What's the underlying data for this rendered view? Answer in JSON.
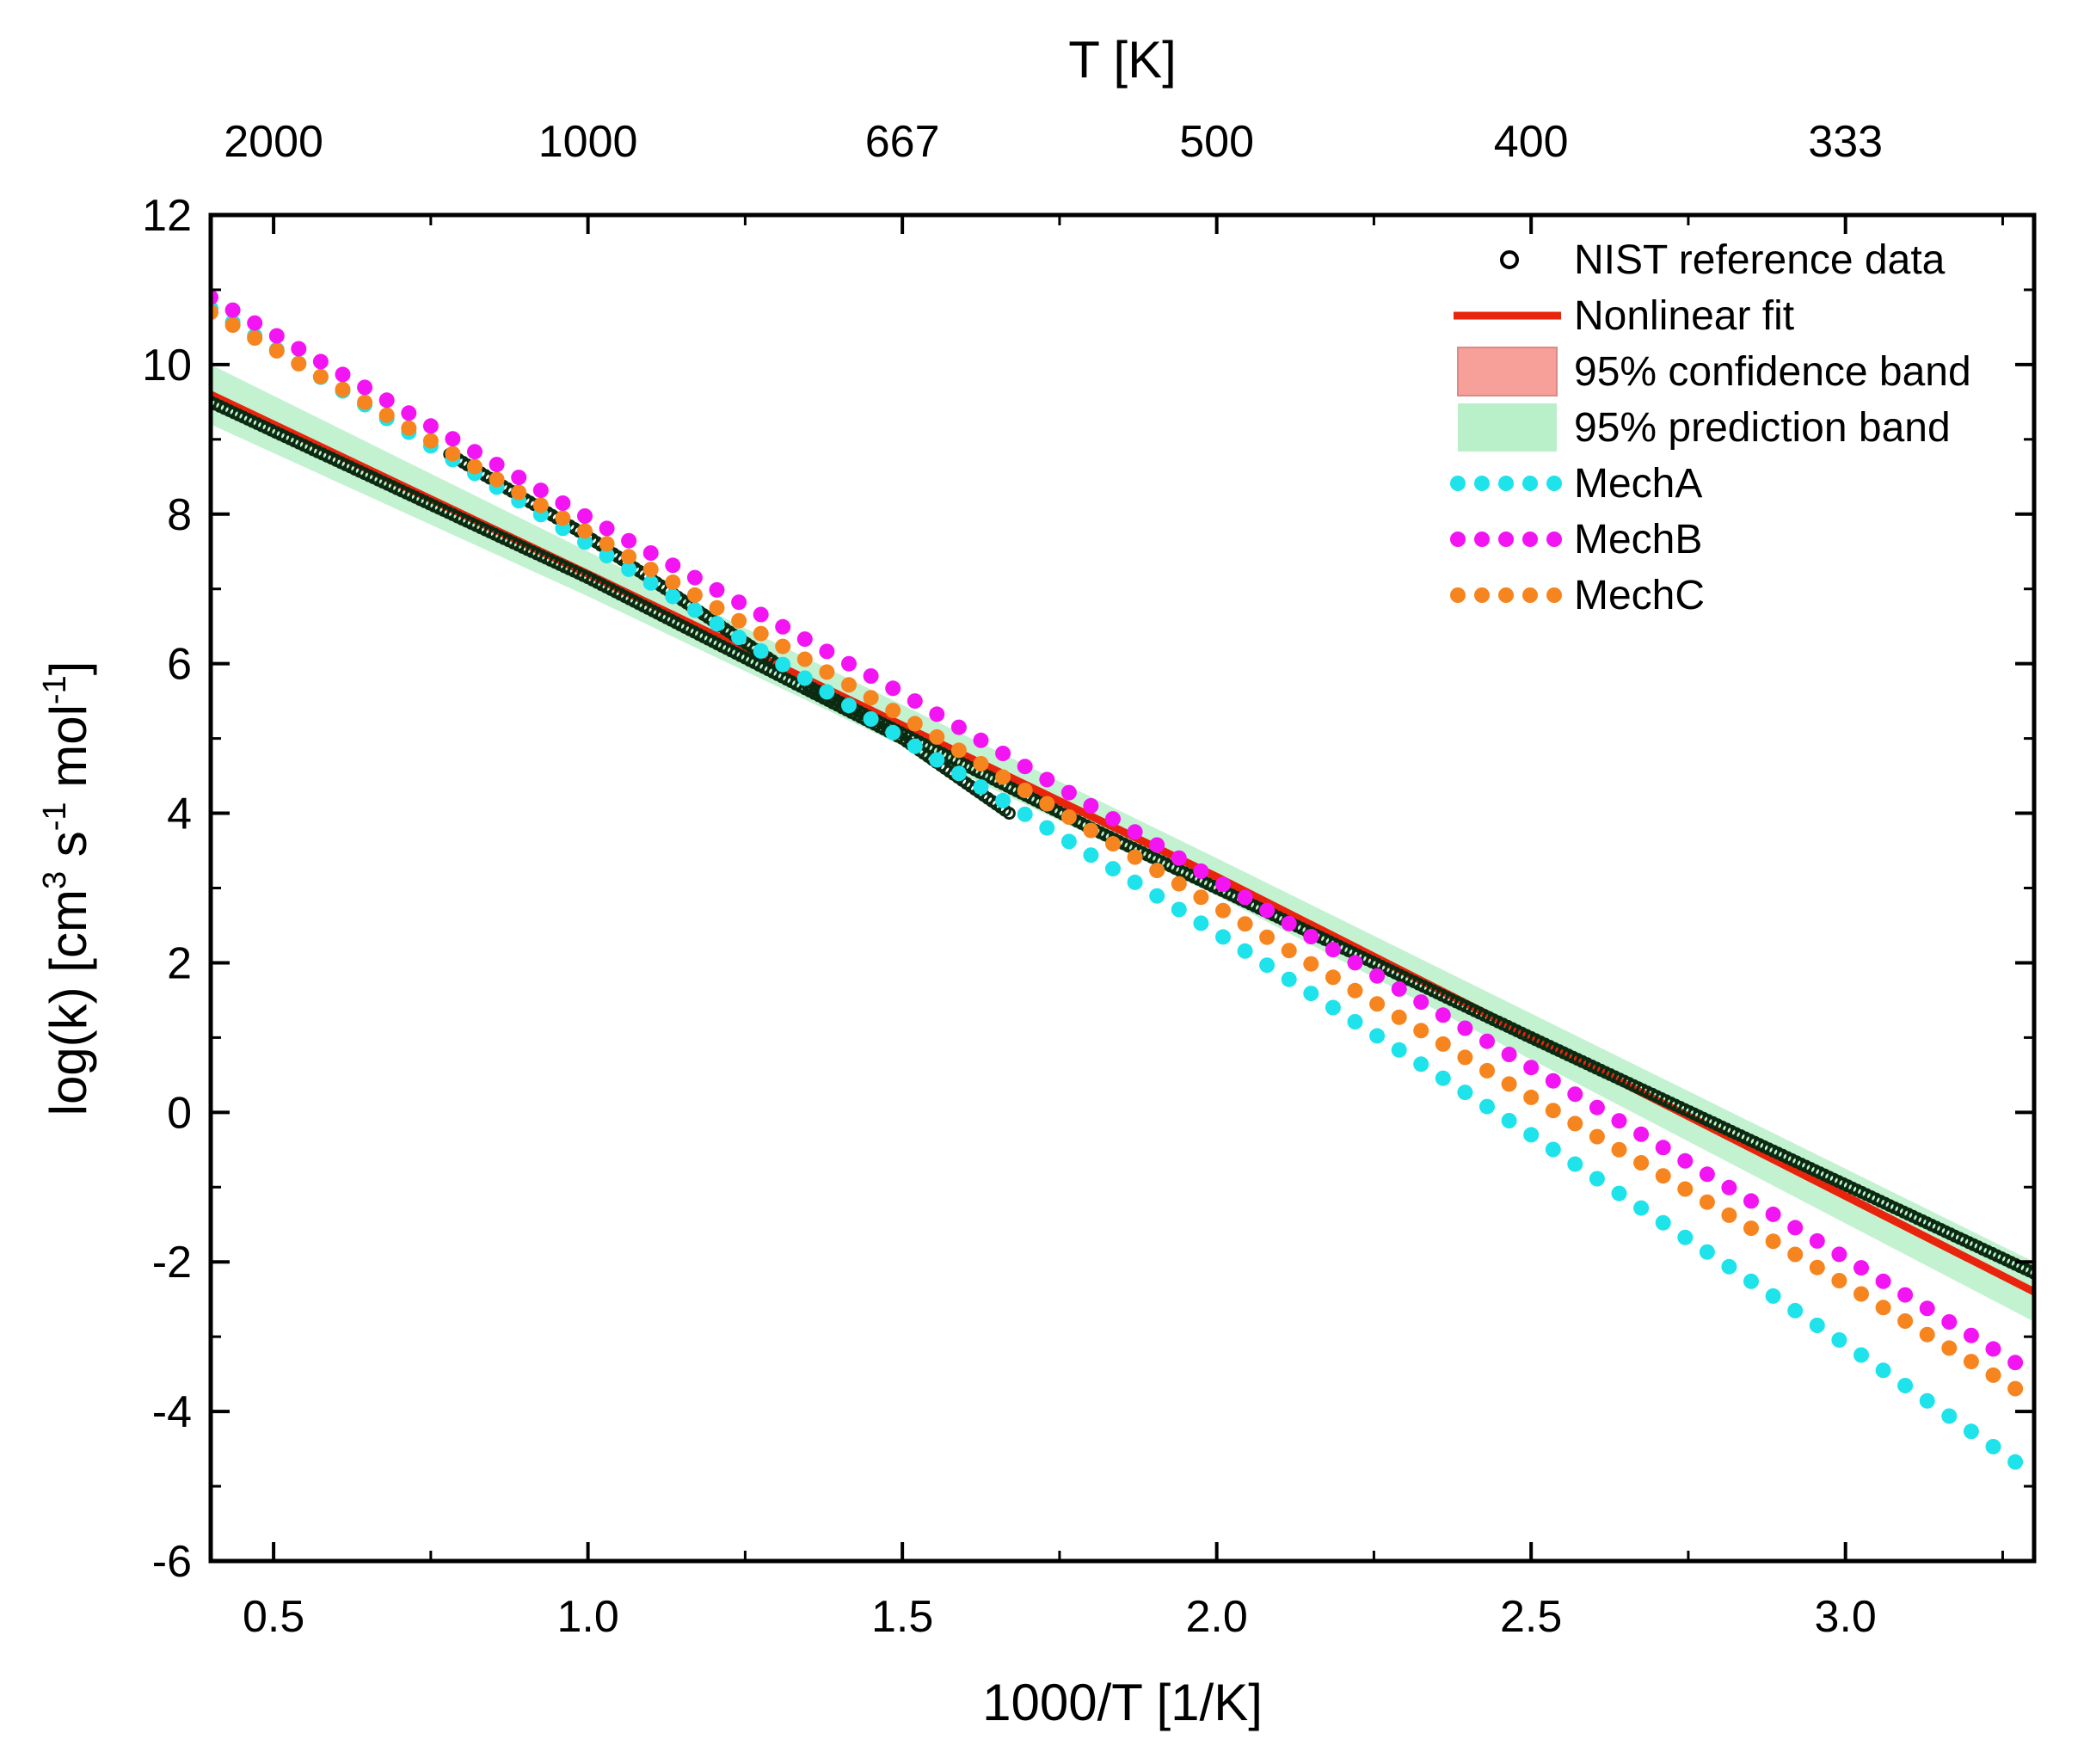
{
  "chart_data": {
    "type": "scatter",
    "title": "",
    "xlabel": "1000/T [1/K]",
    "top_xlabel": "T [K]",
    "ylabel": "log(k) [cm³ s⁻¹ mol⁻¹]",
    "ylabel_parts": {
      "pre": "log(k) [cm",
      "sup1": "3",
      "mid1": " s",
      "sup2": "-1",
      "mid2": " mol",
      "sup3": "-1",
      "post": "]"
    },
    "xlim": [
      0.4,
      3.3
    ],
    "ylim": [
      -6,
      12
    ],
    "x_ticks": [
      {
        "value": 0.5,
        "label": "0.5"
      },
      {
        "value": 1.0,
        "label": "1.0"
      },
      {
        "value": 1.5,
        "label": "1.5"
      },
      {
        "value": 2.0,
        "label": "2.0"
      },
      {
        "value": 2.5,
        "label": "2.5"
      },
      {
        "value": 3.0,
        "label": "3.0"
      }
    ],
    "top_ticks": [
      {
        "value": 0.5,
        "label": "2000"
      },
      {
        "value": 1.0,
        "label": "1000"
      },
      {
        "value": 1.5,
        "label": "667"
      },
      {
        "value": 2.0,
        "label": "500"
      },
      {
        "value": 2.5,
        "label": "400"
      },
      {
        "value": 3.0,
        "label": "333"
      }
    ],
    "y_ticks": [
      {
        "value": 12,
        "label": "12"
      },
      {
        "value": 10,
        "label": "10"
      },
      {
        "value": 8,
        "label": "8"
      },
      {
        "value": 6,
        "label": "6"
      },
      {
        "value": 4,
        "label": "4"
      },
      {
        "value": 2,
        "label": "2"
      },
      {
        "value": 0,
        "label": "0"
      },
      {
        "value": -2,
        "label": "-2"
      },
      {
        "value": -4,
        "label": "-4"
      },
      {
        "value": -6,
        "label": "-6"
      }
    ],
    "legend": {
      "position": "top-right",
      "entries": [
        {
          "key": "nist",
          "label": "NIST reference data",
          "kind": "open-circle",
          "color": "#000000"
        },
        {
          "key": "fit",
          "label": "Nonlinear fit",
          "kind": "line",
          "color": "#e8250c"
        },
        {
          "key": "conf",
          "label": "95% confidence band",
          "kind": "box",
          "color": "#f7a09a"
        },
        {
          "key": "pred",
          "label": "95% prediction band",
          "kind": "box",
          "color": "#b9f0c9"
        },
        {
          "key": "mechA",
          "label": "MechA",
          "kind": "dots",
          "color": "#1ee3ea"
        },
        {
          "key": "mechB",
          "label": "MechB",
          "kind": "dots",
          "color": "#f314f3"
        },
        {
          "key": "mechC",
          "label": "MechC",
          "kind": "dots",
          "color": "#f7851f"
        }
      ]
    },
    "series": [
      {
        "name": "Nonlinear fit",
        "kind": "line",
        "color": "#e8250c",
        "x": [
          0.4,
          1.0,
          2.0,
          3.3
        ],
        "y": [
          9.6,
          7.2,
          3.15,
          -2.4
        ]
      },
      {
        "name": "95% prediction band",
        "kind": "band",
        "color": "#b9f0c9",
        "x": [
          0.4,
          1.0,
          2.0,
          3.3
        ],
        "upper": [
          10.0,
          7.5,
          3.4,
          -2.0
        ],
        "lower": [
          9.2,
          6.9,
          2.9,
          -2.8
        ]
      },
      {
        "name": "NIST reference data",
        "kind": "open-circles",
        "color": "#000000",
        "segments": [
          {
            "x": [
              0.4,
              1.0,
              1.5,
              1.67
            ],
            "y": [
              9.5,
              7.15,
              5.0,
              4.0
            ]
          },
          {
            "x": [
              0.78,
              1.0,
              1.3
            ],
            "y": [
              8.8,
              7.7,
              6.0
            ]
          },
          {
            "x": [
              1.35,
              1.8,
              2.5,
              3.3
            ],
            "y": [
              5.7,
              3.8,
              1.0,
              -2.15
            ]
          }
        ]
      },
      {
        "name": "MechA",
        "kind": "dots",
        "color": "#1ee3ea",
        "x": [
          0.4,
          1.0,
          1.5,
          2.0,
          2.5,
          3.0,
          3.3
        ],
        "y": [
          10.75,
          7.6,
          5.0,
          2.4,
          -0.3,
          -3.1,
          -4.85
        ]
      },
      {
        "name": "MechB",
        "kind": "dots",
        "color": "#f314f3",
        "x": [
          0.4,
          1.0,
          1.5,
          2.0,
          2.5,
          3.0,
          3.3
        ],
        "y": [
          10.9,
          7.95,
          5.6,
          3.1,
          0.6,
          -1.95,
          -3.5
        ]
      },
      {
        "name": "MechC",
        "kind": "dots",
        "color": "#f7851f",
        "x": [
          0.4,
          1.0,
          1.5,
          2.0,
          2.5,
          3.0,
          3.3
        ],
        "y": [
          10.7,
          7.75,
          5.3,
          2.75,
          0.2,
          -2.3,
          -3.85
        ]
      }
    ]
  }
}
